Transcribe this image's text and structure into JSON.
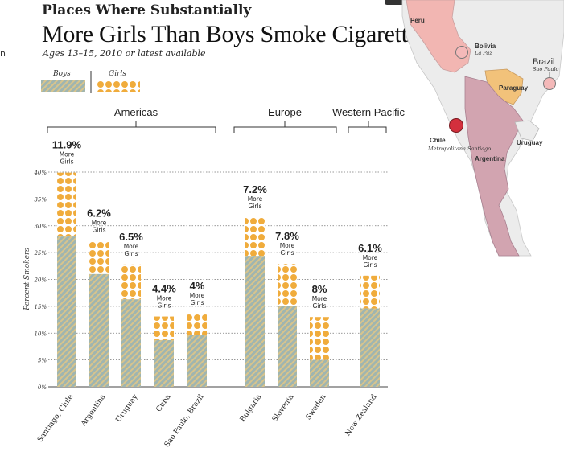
{
  "header": {
    "title_line1": "Places Where Substantially",
    "title_line2": "More Girls Than Boys Smoke Cigarettes",
    "subtitle": "Ages 13–15, 2010 or latest available",
    "edge_fragment": "n"
  },
  "legend": {
    "boys": "Boys",
    "girls": "Girls"
  },
  "groups": [
    {
      "name": "Americas"
    },
    {
      "name": "Europe"
    },
    {
      "name": "Western Pacific"
    }
  ],
  "map": {
    "countries": [
      "Peru",
      "Bolivia",
      "Paraguay",
      "Argentina",
      "Uruguay",
      "Chile",
      "Brazil"
    ],
    "cities": [
      {
        "country": "Bolivia",
        "city": "La Paz"
      },
      {
        "country": "Brazil",
        "city": "Sao Paulo"
      },
      {
        "country": "Chile",
        "city": "Metropolitana Santiago"
      }
    ],
    "colors": {
      "land": "#ececec",
      "peru": "#f2b6b2",
      "paraguay": "#f2c27a",
      "argentina": "#d2a4b0",
      "marker_pink": "#f4b9b9",
      "marker_red": "#d3303d"
    }
  },
  "chart_data": {
    "type": "bar",
    "stacked": true,
    "ylabel": "Percent Smokers",
    "ylim": [
      0,
      40
    ],
    "yticks": [
      0,
      5,
      10,
      15,
      20,
      25,
      30,
      35,
      40
    ],
    "ytick_suffix": "%",
    "grid": true,
    "categories": [
      "Santiago, Chile",
      "Argentina",
      "Uruguay",
      "Cuba",
      "Sao Paulo, Brazil",
      "Bulgaria",
      "Slovenia",
      "Sweden",
      "New Zealand"
    ],
    "group_of": [
      0,
      0,
      0,
      0,
      0,
      1,
      1,
      1,
      2
    ],
    "boys": [
      28.0,
      21.0,
      16.3,
      8.7,
      9.6,
      24.4,
      15.1,
      5.0,
      14.6
    ],
    "girls": [
      39.9,
      27.2,
      22.8,
      13.1,
      13.6,
      31.6,
      22.9,
      13.0,
      20.7
    ],
    "difference_labels": [
      "11.9%",
      "6.2%",
      "6.5%",
      "4.4%",
      "4%",
      "7.2%",
      "7.8%",
      "8%",
      "6.1%"
    ],
    "annotation_text": "More Girls",
    "colors": {
      "boys": "#9fb5b0",
      "boys_stripe": "#d8c48c",
      "girls": "#f0ac3c",
      "girls_bg": "#ffffff"
    }
  }
}
